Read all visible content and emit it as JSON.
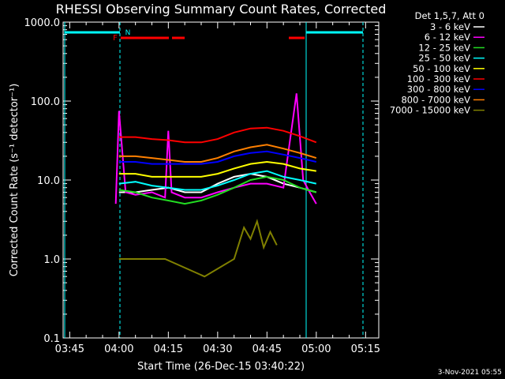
{
  "chart_data": {
    "type": "line",
    "title": "RHESSI Observing Summary Count Rates, Corrected",
    "xlabel": "Start Time (26-Dec-15 03:40:22)",
    "ylabel": "Corrected Count Rate (s⁻¹ detector⁻¹)",
    "yscale": "log",
    "ylim": [
      0.1,
      1000
    ],
    "xlim_minutes": [
      223,
      319
    ],
    "x_tick_labels": [
      "03:45",
      "04:00",
      "04:15",
      "04:30",
      "04:45",
      "05:00",
      "05:15"
    ],
    "x_tick_minutes": [
      225,
      240,
      255,
      270,
      285,
      300,
      315
    ],
    "y_tick_labels": [
      "0.1",
      "1.0",
      "10.0",
      "100.0",
      "1000.0"
    ],
    "y_tick_values": [
      0.1,
      1,
      10,
      100,
      1000
    ],
    "legend_header": "Det 1,5,7, Att 0",
    "legend_position": "top-right",
    "series": [
      {
        "name": "3 - 6 keV",
        "color": "#ffffff",
        "x": [
          240,
          245,
          250,
          255,
          260,
          265,
          270,
          275,
          280,
          285,
          290,
          295,
          300
        ],
        "values": [
          7,
          7,
          7.5,
          8,
          7,
          7,
          9,
          11,
          12,
          11,
          9,
          8,
          7
        ]
      },
      {
        "name": "6 - 12 keV",
        "color": "#ff00ff",
        "x": [
          239,
          240,
          242,
          245,
          250,
          254,
          255,
          256,
          260,
          265,
          270,
          275,
          280,
          285,
          290,
          294,
          296,
          298,
          300
        ],
        "values": [
          5,
          75,
          7,
          6.5,
          7,
          6,
          42,
          7,
          6,
          6,
          7,
          8,
          9,
          9,
          8,
          125,
          10,
          7,
          5
        ]
      },
      {
        "name": "12 - 25 keV",
        "color": "#22dd22",
        "x": [
          240,
          245,
          250,
          255,
          260,
          265,
          270,
          275,
          280,
          285,
          290,
          295,
          300
        ],
        "values": [
          7.5,
          7,
          6,
          5.5,
          5,
          5.5,
          6.5,
          8,
          10,
          11,
          10,
          8,
          7
        ]
      },
      {
        "name": "25 - 50 keV",
        "color": "#00ffff",
        "x": [
          240,
          245,
          250,
          255,
          260,
          265,
          270,
          275,
          280,
          285,
          290,
          295,
          300
        ],
        "values": [
          9,
          9.5,
          8.5,
          8,
          7.5,
          7.5,
          8.5,
          10,
          12,
          13,
          11,
          10,
          9
        ]
      },
      {
        "name": "50 - 100 keV",
        "color": "#ffff00",
        "x": [
          240,
          245,
          250,
          255,
          260,
          265,
          270,
          275,
          280,
          285,
          290,
          295,
          300
        ],
        "values": [
          12,
          12,
          11,
          11,
          11,
          11,
          12,
          14,
          16,
          17,
          16,
          14,
          13
        ]
      },
      {
        "name": "100 - 300 keV",
        "color": "#ff0000",
        "x": [
          240,
          245,
          250,
          255,
          260,
          265,
          270,
          275,
          280,
          285,
          290,
          295,
          300
        ],
        "values": [
          35,
          35,
          33,
          32,
          30,
          30,
          33,
          40,
          45,
          46,
          42,
          36,
          30
        ]
      },
      {
        "name": "300 - 800 keV",
        "color": "#0000ff",
        "x": [
          240,
          245,
          250,
          255,
          260,
          265,
          270,
          275,
          280,
          285,
          290,
          295,
          300
        ],
        "values": [
          17,
          17,
          16,
          16,
          16,
          16,
          17,
          20,
          22,
          23,
          21,
          19,
          17
        ]
      },
      {
        "name": "800 - 7000 keV",
        "color": "#ff8000",
        "x": [
          240,
          245,
          250,
          255,
          260,
          265,
          270,
          275,
          280,
          285,
          290,
          295,
          300
        ],
        "values": [
          20,
          20,
          19,
          18,
          17,
          17,
          19,
          23,
          26,
          28,
          25,
          22,
          19
        ]
      },
      {
        "name": "7000 - 15000 keV",
        "color": "#808000",
        "x": [
          240,
          247,
          254,
          266,
          275,
          278,
          280,
          282,
          284,
          286,
          288
        ],
        "values": [
          1,
          1,
          1,
          0.6,
          1,
          2.5,
          1.8,
          3,
          1.4,
          2.2,
          1.5
        ]
      }
    ],
    "annotations": [
      "F",
      "N"
    ],
    "flag_colors": {
      "night": "#00ffff",
      "flare": "#ff0000"
    }
  },
  "footer_date": "3-Nov-2021 05:55"
}
